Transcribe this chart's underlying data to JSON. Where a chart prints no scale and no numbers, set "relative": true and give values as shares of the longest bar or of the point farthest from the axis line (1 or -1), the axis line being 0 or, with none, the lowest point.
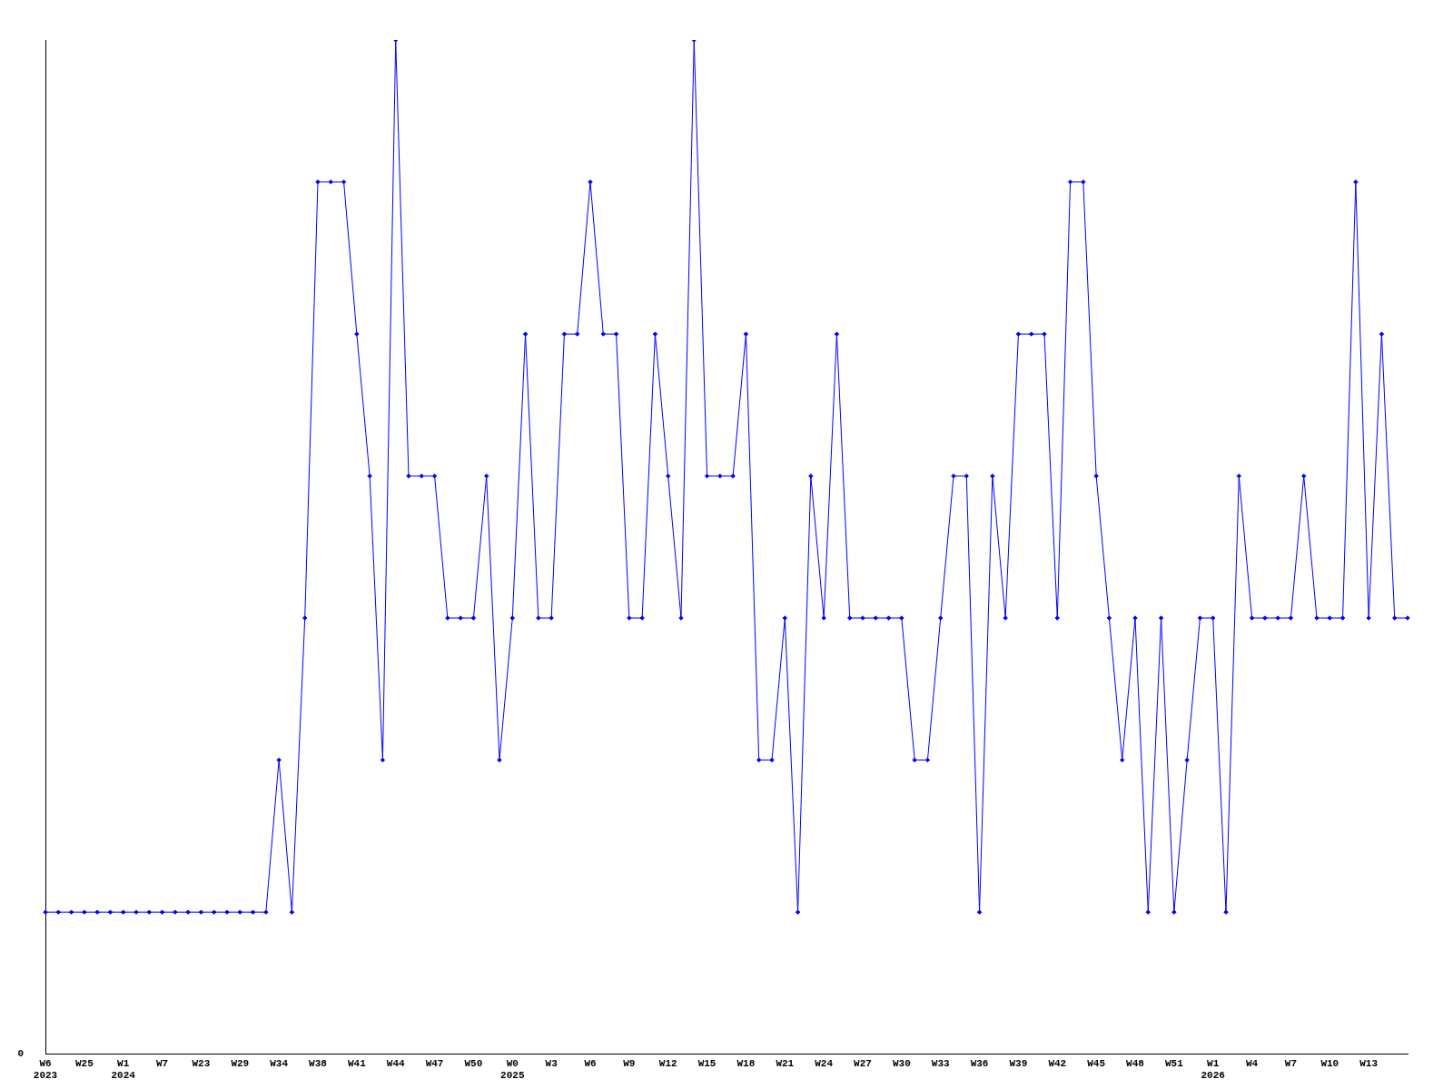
{
  "chart_data": {
    "type": "line",
    "relative": true,
    "color": "#0000ff",
    "marker": "diamond",
    "grid": false,
    "legend": false,
    "annotations": [
      "0"
    ],
    "categories": [
      "W6\n2023",
      null,
      null,
      "W25",
      null,
      null,
      "W1\n2024",
      null,
      null,
      "W7",
      null,
      null,
      "W23",
      null,
      null,
      "W29",
      null,
      null,
      "W34",
      null,
      null,
      "W38",
      null,
      null,
      "W41",
      null,
      null,
      "W44",
      null,
      null,
      "W47",
      null,
      null,
      "W50",
      null,
      null,
      "W0\n2025",
      null,
      null,
      "W3",
      null,
      null,
      "W6",
      null,
      null,
      "W9",
      null,
      null,
      "W12",
      null,
      null,
      "W15",
      null,
      null,
      "W18",
      null,
      null,
      "W21",
      null,
      null,
      "W24",
      null,
      null,
      "W27",
      null,
      null,
      "W30",
      null,
      null,
      "W33",
      null,
      null,
      "W36",
      null,
      null,
      "W39",
      null,
      null,
      "W42",
      null,
      null,
      "W45",
      null,
      null,
      "W48",
      null,
      null,
      "W51",
      null,
      null,
      "W1\n2026",
      null,
      null,
      "W4",
      null,
      null,
      "W7",
      null,
      null,
      "W10",
      null,
      null,
      "W13",
      null,
      null,
      null
    ],
    "values": [
      0.14,
      0.14,
      0.14,
      0.14,
      0.14,
      0.14,
      0.14,
      0.14,
      0.14,
      0.14,
      0.14,
      0.14,
      0.14,
      0.14,
      0.14,
      0.14,
      0.14,
      0.14,
      0.29,
      0.14,
      0.43,
      0.86,
      0.86,
      0.86,
      0.71,
      0.57,
      0.29,
      1,
      0.57,
      0.57,
      0.57,
      0.43,
      0.43,
      0.43,
      0.57,
      0.29,
      0.43,
      0.71,
      0.43,
      0.43,
      0.71,
      0.71,
      0.86,
      0.71,
      0.71,
      0.43,
      0.43,
      0.71,
      0.57,
      0.43,
      1,
      0.57,
      0.57,
      0.57,
      0.71,
      0.29,
      0.29,
      0.43,
      0.14,
      0.57,
      0.43,
      0.71,
      0.43,
      0.43,
      0.43,
      0.43,
      0.43,
      0.29,
      0.29,
      0.43,
      0.57,
      0.57,
      0.14,
      0.57,
      0.43,
      0.71,
      0.71,
      0.71,
      0.43,
      0.86,
      0.86,
      0.57,
      0.43,
      0.29,
      0.43,
      0.14,
      0.43,
      0.14,
      0.29,
      0.43,
      0.43,
      0.14,
      0.57,
      0.43,
      0.43,
      0.43,
      0.43,
      0.57,
      0.43,
      0.43,
      0.43,
      0.86,
      0.43,
      0.71,
      0.43,
      0.43
    ]
  }
}
